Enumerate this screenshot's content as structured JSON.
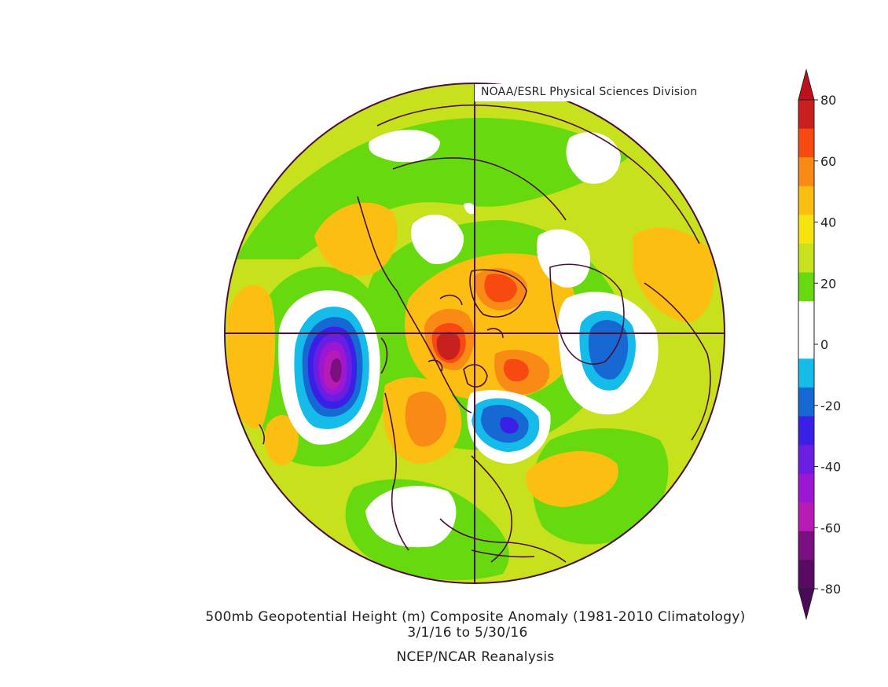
{
  "credit": "NOAA/ESRL Physical Sciences Division",
  "caption": {
    "line1": "500mb Geopotential Height (m) Composite Anomaly (1981-2010 Climatology)",
    "line2": "3/1/16   to 5/30/16",
    "line3": "NCEP/NCAR Reanalysis"
  },
  "colorbar": {
    "labels": [
      "80",
      "60",
      "40",
      "20",
      "0",
      "-20",
      "-40",
      "-60",
      "-80"
    ],
    "colors_top_to_bottom": [
      "#c8201e",
      "#f84a10",
      "#f98a16",
      "#fcbf11",
      "#f7e30e",
      "#c7e21c",
      "#66d90f",
      "#ffffff",
      "#ffffff",
      "#15bbe9",
      "#1669d3",
      "#3a20e6",
      "#6a1ee1",
      "#9c16d3",
      "#b81ab6",
      "#7a1080",
      "#5a0a62"
    ],
    "top_arrow_color": "#c0101a",
    "bottom_arrow_color": "#4a0a5a"
  },
  "colors": {
    "background_field": "#c7e21c",
    "coastline": "#4a0f3a"
  },
  "map": {
    "projection": "north polar stereographic"
  }
}
